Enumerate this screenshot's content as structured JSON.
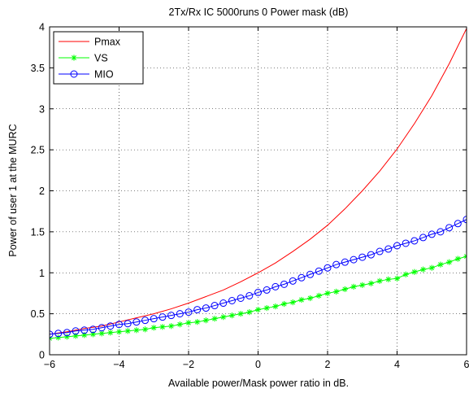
{
  "chart_data": {
    "type": "line",
    "title": "2Tx/Rx IC  5000runs    0  Power mask (dB)",
    "xlabel": "Available power/Mask power ratio in dB.",
    "ylabel": "Power of user 1  at the MURC",
    "xlim": [
      -6,
      6
    ],
    "ylim": [
      0,
      4
    ],
    "x_ticks": [
      -6,
      -4,
      -2,
      0,
      2,
      4,
      6
    ],
    "y_ticks": [
      0,
      0.5,
      1,
      1.5,
      2,
      2.5,
      3,
      3.5,
      4
    ],
    "x_tick_labels": [
      "−6",
      "−4",
      "−2",
      "0",
      "2",
      "4",
      "6"
    ],
    "y_tick_labels": [
      "0",
      "0.5",
      "1",
      "1.5",
      "2",
      "2.5",
      "3",
      "3.5",
      "4"
    ],
    "grid": true,
    "legend_position": "top-left",
    "series": [
      {
        "name": "Pmax",
        "color": "#ff0000",
        "marker": "none",
        "x": [
          -6,
          -5.5,
          -5,
          -4.5,
          -4,
          -3.5,
          -3,
          -2.5,
          -2,
          -1.5,
          -1,
          -0.5,
          0,
          0.5,
          1,
          1.5,
          2,
          2.5,
          3,
          3.5,
          4,
          4.5,
          5,
          5.5,
          6
        ],
        "values": [
          0.25,
          0.28,
          0.32,
          0.35,
          0.4,
          0.45,
          0.5,
          0.56,
          0.63,
          0.71,
          0.79,
          0.89,
          1.0,
          1.12,
          1.26,
          1.41,
          1.58,
          1.78,
          2.0,
          2.24,
          2.51,
          2.82,
          3.16,
          3.55,
          3.98
        ]
      },
      {
        "name": "VS",
        "color": "#00ff00",
        "marker": "star",
        "x": [
          -6,
          -5.75,
          -5.5,
          -5.25,
          -5,
          -4.75,
          -4.5,
          -4.25,
          -4,
          -3.75,
          -3.5,
          -3.25,
          -3,
          -2.75,
          -2.5,
          -2.25,
          -2,
          -1.75,
          -1.5,
          -1.25,
          -1,
          -0.75,
          -0.5,
          -0.25,
          0,
          0.25,
          0.5,
          0.75,
          1,
          1.25,
          1.5,
          1.75,
          2,
          2.25,
          2.5,
          2.75,
          3,
          3.25,
          3.5,
          3.75,
          4,
          4.25,
          4.5,
          4.75,
          5,
          5.25,
          5.5,
          5.75,
          6
        ],
        "values": [
          0.2,
          0.21,
          0.22,
          0.23,
          0.24,
          0.25,
          0.26,
          0.27,
          0.28,
          0.29,
          0.3,
          0.31,
          0.33,
          0.34,
          0.35,
          0.37,
          0.39,
          0.4,
          0.42,
          0.44,
          0.46,
          0.48,
          0.5,
          0.52,
          0.55,
          0.57,
          0.59,
          0.62,
          0.64,
          0.67,
          0.69,
          0.72,
          0.75,
          0.77,
          0.8,
          0.83,
          0.85,
          0.87,
          0.9,
          0.92,
          0.93,
          0.98,
          1.01,
          1.04,
          1.06,
          1.1,
          1.13,
          1.17,
          1.2
        ]
      },
      {
        "name": "MIO",
        "color": "#0000ff",
        "marker": "circle",
        "x": [
          -6,
          -5.75,
          -5.5,
          -5.25,
          -5,
          -4.75,
          -4.5,
          -4.25,
          -4,
          -3.75,
          -3.5,
          -3.25,
          -3,
          -2.75,
          -2.5,
          -2.25,
          -2,
          -1.75,
          -1.5,
          -1.25,
          -1,
          -0.75,
          -0.5,
          -0.25,
          0,
          0.25,
          0.5,
          0.75,
          1,
          1.25,
          1.5,
          1.75,
          2,
          2.25,
          2.5,
          2.75,
          3,
          3.25,
          3.5,
          3.75,
          4,
          4.25,
          4.5,
          4.75,
          5,
          5.25,
          5.5,
          5.75,
          6
        ],
        "values": [
          0.25,
          0.26,
          0.27,
          0.29,
          0.3,
          0.31,
          0.33,
          0.35,
          0.37,
          0.38,
          0.4,
          0.42,
          0.44,
          0.46,
          0.48,
          0.5,
          0.52,
          0.55,
          0.57,
          0.6,
          0.63,
          0.66,
          0.69,
          0.72,
          0.76,
          0.79,
          0.83,
          0.86,
          0.9,
          0.94,
          0.98,
          1.02,
          1.06,
          1.1,
          1.13,
          1.16,
          1.19,
          1.22,
          1.26,
          1.29,
          1.33,
          1.36,
          1.39,
          1.43,
          1.47,
          1.5,
          1.55,
          1.6,
          1.65
        ]
      }
    ]
  }
}
